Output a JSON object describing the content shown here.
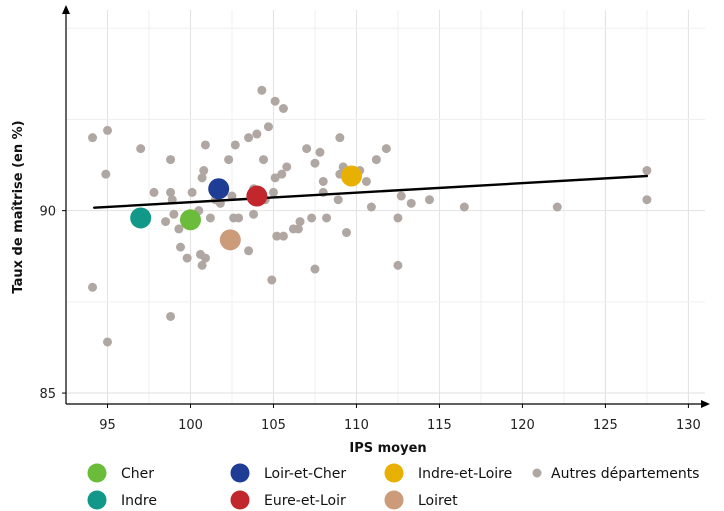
{
  "chart_data": {
    "type": "scatter",
    "xlabel": "IPS moyen",
    "ylabel": "Taux de maîtrise (en %)",
    "xlim": [
      92.5,
      131
    ],
    "ylim": [
      84.7,
      95.5
    ],
    "x_ticks": [
      95,
      100,
      105,
      110,
      115,
      120,
      125,
      130
    ],
    "y_ticks": [
      85,
      90
    ],
    "grid": true,
    "legend_position": "bottom",
    "trend_line": {
      "x": [
        94.2,
        127.5
      ],
      "y": [
        90.08,
        90.95
      ],
      "color": "#000000"
    },
    "series": [
      {
        "name": "Cher",
        "color": "#6cbc3b",
        "points": [
          {
            "x": 100.0,
            "y": 89.75
          }
        ]
      },
      {
        "name": "Indre",
        "color": "#129888",
        "points": [
          {
            "x": 97.0,
            "y": 89.8
          }
        ]
      },
      {
        "name": "Loir-et-Cher",
        "color": "#1f3d94",
        "points": [
          {
            "x": 101.7,
            "y": 90.6
          }
        ]
      },
      {
        "name": "Eure-et-Loir",
        "color": "#c1272d",
        "points": [
          {
            "x": 104.0,
            "y": 90.4
          }
        ]
      },
      {
        "name": "Indre-et-Loire",
        "color": "#e8b000",
        "points": [
          {
            "x": 109.7,
            "y": 90.95
          }
        ]
      },
      {
        "name": "Loiret",
        "color": "#cc9b7a",
        "points": [
          {
            "x": 102.4,
            "y": 89.2
          }
        ]
      },
      {
        "name": "Autres départements",
        "color": "#b0a7a3",
        "points": [
          {
            "x": 94.1,
            "y": 92.0
          },
          {
            "x": 95.0,
            "y": 92.2
          },
          {
            "x": 94.9,
            "y": 91.0
          },
          {
            "x": 94.1,
            "y": 87.9
          },
          {
            "x": 95.0,
            "y": 86.4
          },
          {
            "x": 97.0,
            "y": 91.7
          },
          {
            "x": 97.8,
            "y": 90.5
          },
          {
            "x": 98.5,
            "y": 89.7
          },
          {
            "x": 98.8,
            "y": 91.4
          },
          {
            "x": 98.8,
            "y": 90.5
          },
          {
            "x": 98.9,
            "y": 90.3
          },
          {
            "x": 99.0,
            "y": 89.9
          },
          {
            "x": 99.3,
            "y": 89.5
          },
          {
            "x": 99.4,
            "y": 89.0
          },
          {
            "x": 99.8,
            "y": 88.7
          },
          {
            "x": 98.8,
            "y": 87.1
          },
          {
            "x": 100.1,
            "y": 90.5
          },
          {
            "x": 100.5,
            "y": 90.0
          },
          {
            "x": 100.6,
            "y": 88.8
          },
          {
            "x": 100.7,
            "y": 88.5
          },
          {
            "x": 100.9,
            "y": 88.7
          },
          {
            "x": 100.7,
            "y": 90.9
          },
          {
            "x": 100.8,
            "y": 91.1
          },
          {
            "x": 100.9,
            "y": 91.8
          },
          {
            "x": 101.2,
            "y": 89.8
          },
          {
            "x": 101.5,
            "y": 90.3
          },
          {
            "x": 101.8,
            "y": 90.2
          },
          {
            "x": 102.0,
            "y": 90.5
          },
          {
            "x": 102.3,
            "y": 91.4
          },
          {
            "x": 102.5,
            "y": 90.4
          },
          {
            "x": 102.6,
            "y": 89.8
          },
          {
            "x": 102.7,
            "y": 91.8
          },
          {
            "x": 102.9,
            "y": 89.8
          },
          {
            "x": 103.5,
            "y": 88.9
          },
          {
            "x": 103.5,
            "y": 92.0
          },
          {
            "x": 103.8,
            "y": 89.9
          },
          {
            "x": 103.8,
            "y": 90.6
          },
          {
            "x": 104.0,
            "y": 92.1
          },
          {
            "x": 104.3,
            "y": 93.3
          },
          {
            "x": 104.4,
            "y": 91.4
          },
          {
            "x": 104.5,
            "y": 90.3
          },
          {
            "x": 104.7,
            "y": 92.3
          },
          {
            "x": 104.9,
            "y": 88.1
          },
          {
            "x": 105.0,
            "y": 90.5
          },
          {
            "x": 105.1,
            "y": 93.0
          },
          {
            "x": 105.1,
            "y": 90.9
          },
          {
            "x": 105.2,
            "y": 89.3
          },
          {
            "x": 105.5,
            "y": 91.0
          },
          {
            "x": 105.6,
            "y": 92.8
          },
          {
            "x": 105.6,
            "y": 89.3
          },
          {
            "x": 105.8,
            "y": 91.2
          },
          {
            "x": 106.2,
            "y": 89.5
          },
          {
            "x": 106.5,
            "y": 89.5
          },
          {
            "x": 106.6,
            "y": 89.7
          },
          {
            "x": 107.0,
            "y": 91.7
          },
          {
            "x": 107.3,
            "y": 89.8
          },
          {
            "x": 107.5,
            "y": 91.3
          },
          {
            "x": 107.5,
            "y": 88.4
          },
          {
            "x": 107.8,
            "y": 91.6
          },
          {
            "x": 108.0,
            "y": 90.8
          },
          {
            "x": 108.0,
            "y": 90.5
          },
          {
            "x": 108.2,
            "y": 89.8
          },
          {
            "x": 108.9,
            "y": 90.3
          },
          {
            "x": 109.0,
            "y": 92.0
          },
          {
            "x": 109.0,
            "y": 91.0
          },
          {
            "x": 109.2,
            "y": 91.2
          },
          {
            "x": 109.4,
            "y": 89.4
          },
          {
            "x": 110.2,
            "y": 91.1
          },
          {
            "x": 110.6,
            "y": 90.8
          },
          {
            "x": 110.9,
            "y": 90.1
          },
          {
            "x": 111.2,
            "y": 91.4
          },
          {
            "x": 111.8,
            "y": 91.7
          },
          {
            "x": 112.5,
            "y": 89.8
          },
          {
            "x": 112.5,
            "y": 88.5
          },
          {
            "x": 112.7,
            "y": 90.4
          },
          {
            "x": 113.3,
            "y": 90.2
          },
          {
            "x": 114.4,
            "y": 90.3
          },
          {
            "x": 116.5,
            "y": 90.1
          },
          {
            "x": 122.1,
            "y": 90.1
          },
          {
            "x": 127.5,
            "y": 91.1
          },
          {
            "x": 127.5,
            "y": 90.3
          }
        ]
      }
    ]
  }
}
